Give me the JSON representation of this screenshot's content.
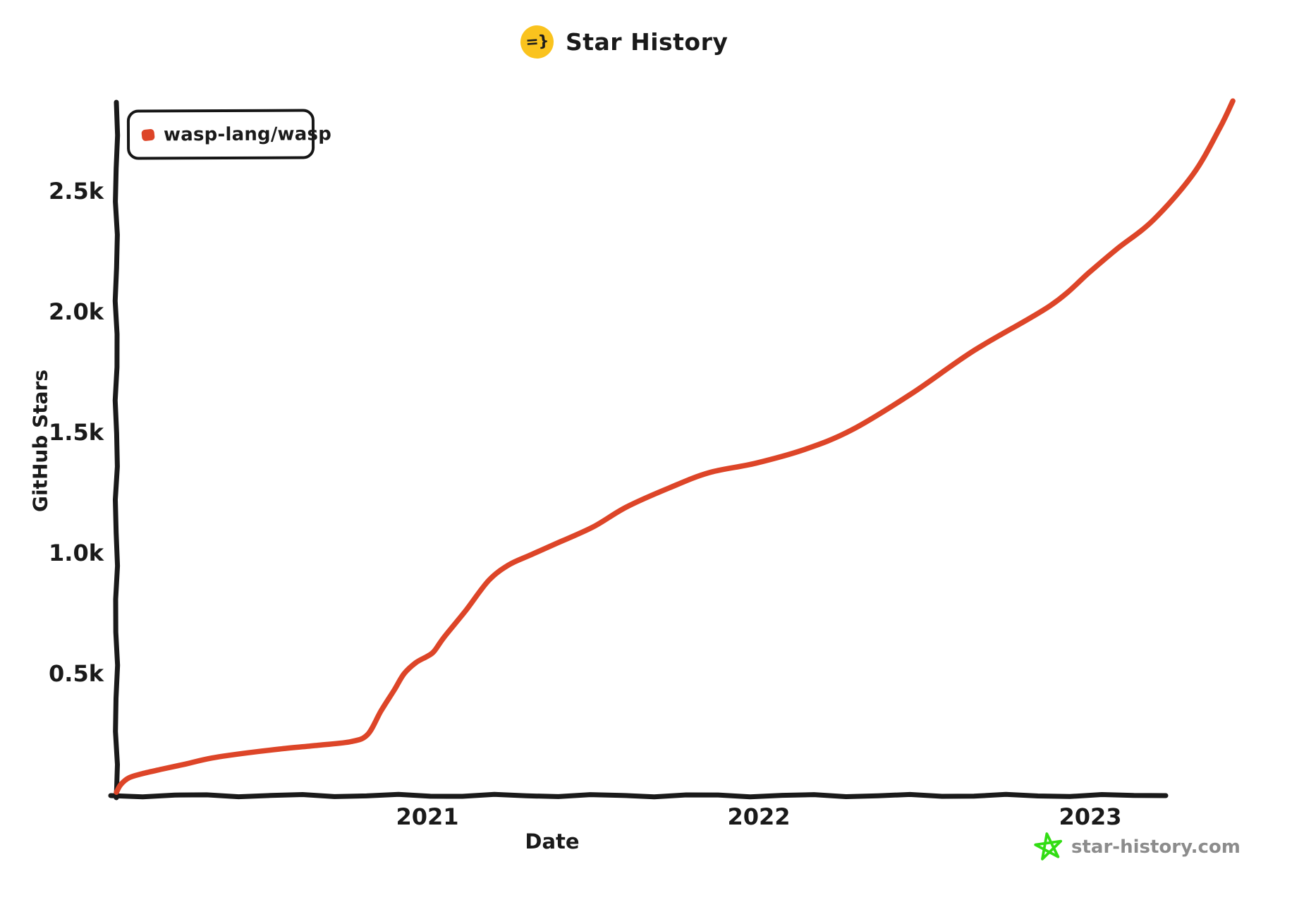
{
  "title": {
    "text": "Star History",
    "logo_glyph": "=}"
  },
  "legend": {
    "series_label": "wasp-lang/wasp"
  },
  "axes": {
    "x_title": "Date",
    "y_title": "GitHub Stars"
  },
  "watermark": {
    "text": "star-history.com"
  },
  "colors": {
    "series": "#dd4528",
    "axis_and_text": "#1a1a1a",
    "logo_yellow": "#fac31e",
    "watermark_star_green": "#32dd14",
    "watermark_text_gray": "#8c8c8c",
    "background": "#ffffff"
  },
  "chart_data": {
    "type": "line",
    "title": "Star History",
    "xlabel": "Date",
    "ylabel": "GitHub Stars",
    "grid": false,
    "legend_position": "top-left",
    "x_axis": {
      "unit": "decimal_year",
      "range": [
        2020.06,
        2023.45
      ],
      "ticks": [
        {
          "value": 2021,
          "label": "2021"
        },
        {
          "value": 2022,
          "label": "2022"
        },
        {
          "value": 2023,
          "label": "2023"
        }
      ]
    },
    "y_axis": {
      "unit": "stars",
      "range": [
        0,
        2950
      ],
      "ticks": [
        {
          "value": 500,
          "label": "0.5k"
        },
        {
          "value": 1000,
          "label": "1.0k"
        },
        {
          "value": 1500,
          "label": "1.5k"
        },
        {
          "value": 2000,
          "label": "2.0k"
        },
        {
          "value": 2500,
          "label": "2.5k"
        }
      ]
    },
    "series": [
      {
        "name": "wasp-lang/wasp",
        "color": "#dd4528",
        "points": [
          [
            2020.062,
            8
          ],
          [
            2020.075,
            40
          ],
          [
            2020.1,
            68
          ],
          [
            2020.14,
            85
          ],
          [
            2020.2,
            104
          ],
          [
            2020.27,
            125
          ],
          [
            2020.35,
            150
          ],
          [
            2020.46,
            172
          ],
          [
            2020.56,
            188
          ],
          [
            2020.67,
            203
          ],
          [
            2020.77,
            218
          ],
          [
            2020.82,
            248
          ],
          [
            2020.86,
            345
          ],
          [
            2020.9,
            432
          ],
          [
            2020.93,
            500
          ],
          [
            2020.965,
            545
          ],
          [
            2021.0,
            572
          ],
          [
            2021.02,
            592
          ],
          [
            2021.05,
            650
          ],
          [
            2021.115,
            760
          ],
          [
            2021.185,
            886
          ],
          [
            2021.245,
            950
          ],
          [
            2021.31,
            991
          ],
          [
            2021.39,
            1040
          ],
          [
            2021.5,
            1108
          ],
          [
            2021.6,
            1190
          ],
          [
            2021.73,
            1270
          ],
          [
            2021.85,
            1333
          ],
          [
            2021.99,
            1372
          ],
          [
            2022.14,
            1430
          ],
          [
            2022.28,
            1510
          ],
          [
            2022.46,
            1660
          ],
          [
            2022.65,
            1840
          ],
          [
            2022.88,
            2026
          ],
          [
            2023.0,
            2167
          ],
          [
            2023.08,
            2260
          ],
          [
            2023.19,
            2380
          ],
          [
            2023.31,
            2570
          ],
          [
            2023.39,
            2760
          ],
          [
            2023.43,
            2874
          ]
        ]
      }
    ]
  }
}
